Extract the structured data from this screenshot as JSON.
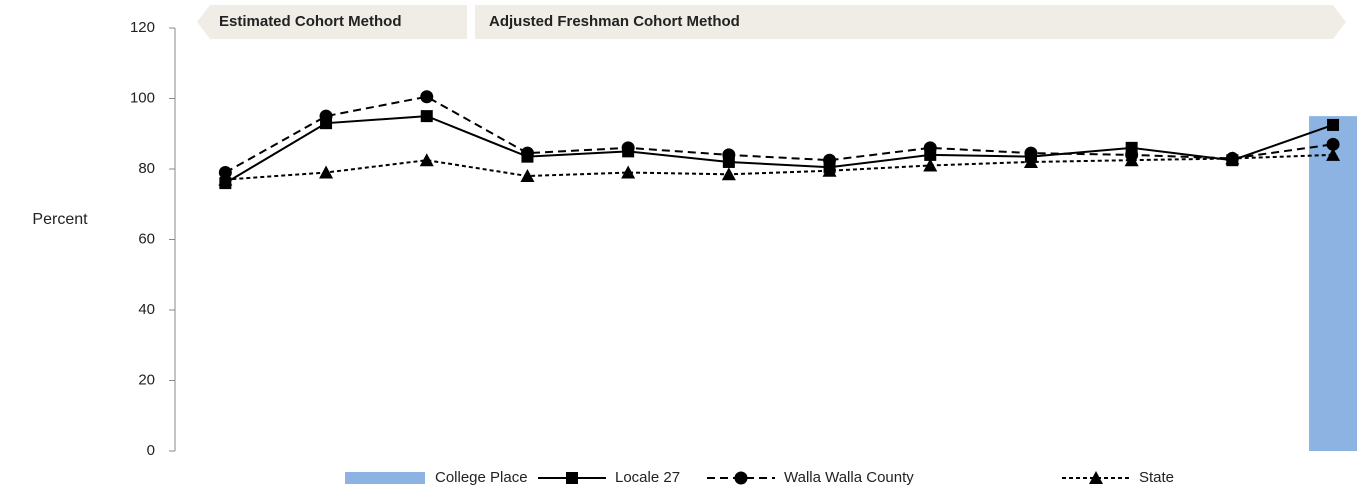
{
  "chart_data": {
    "type": "line",
    "y_label": "Percent",
    "annotations": [
      "Estimated Cohort Method",
      "Adjusted Freshman Cohort Method"
    ],
    "categories": [
      null,
      null,
      null,
      null,
      null,
      null,
      null,
      null,
      null,
      null,
      null,
      null
    ],
    "series": [
      {
        "name": "College Place",
        "type": "bar",
        "color": "#8db3e2",
        "values": [
          null,
          null,
          null,
          null,
          null,
          null,
          null,
          null,
          null,
          null,
          null,
          95
        ]
      },
      {
        "name": "Locale 27",
        "type": "line",
        "color": "#000000",
        "dash": "solid",
        "marker": "square",
        "values": [
          76,
          93,
          95,
          83.5,
          85,
          82,
          80.5,
          84,
          83.5,
          86,
          82.5,
          92.5
        ]
      },
      {
        "name": "Walla Walla County",
        "type": "line",
        "color": "#000000",
        "dash": "dashed",
        "marker": "circle",
        "values": [
          79,
          95,
          100.5,
          84.5,
          86,
          84,
          82.5,
          86,
          84.5,
          84,
          83,
          87
        ]
      },
      {
        "name": "State",
        "type": "line",
        "color": "#000000",
        "dash": "dotted",
        "marker": "triangle",
        "values": [
          77,
          79,
          82.5,
          78,
          79,
          78.5,
          79.5,
          81,
          82,
          82.5,
          83,
          84
        ]
      }
    ],
    "ylim": [
      0,
      120
    ],
    "yticks": [
      0,
      20,
      40,
      60,
      80,
      100,
      120
    ],
    "legend": "bottom"
  }
}
